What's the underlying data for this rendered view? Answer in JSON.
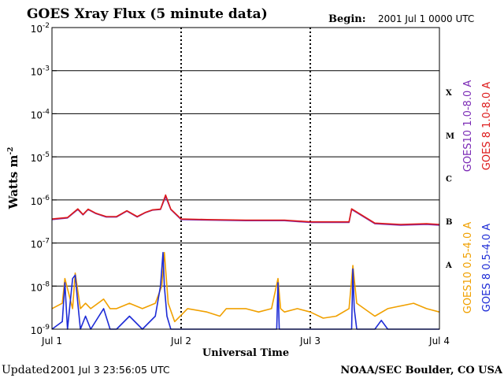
{
  "chart_data": {
    "type": "line",
    "title": "GOES Xray Flux (5 minute data)",
    "begin_label": "Begin:",
    "begin_value": "2001 Jul 1 0000 UTC",
    "ylabel": "Watts m",
    "ylabel_superscript": "-2",
    "xlabel": "Universal Time",
    "y_scale": "log",
    "ylim": [
      1e-09,
      0.01
    ],
    "y_ticks": [
      {
        "base": "10",
        "exp": "-2"
      },
      {
        "base": "10",
        "exp": "-3"
      },
      {
        "base": "10",
        "exp": "-4"
      },
      {
        "base": "10",
        "exp": "-5"
      },
      {
        "base": "10",
        "exp": "-6"
      },
      {
        "base": "10",
        "exp": "-7"
      },
      {
        "base": "10",
        "exp": "-8"
      },
      {
        "base": "10",
        "exp": "-9"
      }
    ],
    "x_ticks": [
      "Jul 1",
      "Jul 2",
      "Jul 3",
      "Jul 4"
    ],
    "xlim_days": [
      0,
      3
    ],
    "flare_classes": [
      {
        "label": "X",
        "level": 0.0001
      },
      {
        "label": "M",
        "level": 1e-05
      },
      {
        "label": "C",
        "level": 1e-06
      },
      {
        "label": "B",
        "level": 1e-07
      },
      {
        "label": "A",
        "level": 1e-08
      }
    ],
    "grid": true,
    "series": [
      {
        "name": "GOES10 1.0-8.0 A",
        "color": "#7b2ab5",
        "x_days": [
          0,
          0.12,
          0.2,
          0.24,
          0.28,
          0.34,
          0.42,
          0.5,
          0.58,
          0.66,
          0.72,
          0.78,
          0.84,
          0.88,
          0.92,
          1.0,
          1.2,
          1.5,
          1.8,
          2.0,
          2.2,
          2.3,
          2.32,
          2.5,
          2.7,
          2.9,
          3.0
        ],
        "values": [
          3.5e-07,
          3.8e-07,
          6e-07,
          4.5e-07,
          6e-07,
          4.8e-07,
          4e-07,
          4e-07,
          5.5e-07,
          4e-07,
          5e-07,
          5.8e-07,
          6e-07,
          1.2e-06,
          6e-07,
          3.5e-07,
          3.4e-07,
          3.3e-07,
          3.3e-07,
          3e-07,
          3e-07,
          3e-07,
          6e-07,
          2.8e-07,
          2.6e-07,
          2.7e-07,
          2.6e-07
        ]
      },
      {
        "name": "GOES 8 1.0-8.0 A",
        "color": "#dd1a1a",
        "x_days": [
          0,
          0.12,
          0.2,
          0.24,
          0.28,
          0.34,
          0.42,
          0.5,
          0.58,
          0.66,
          0.72,
          0.78,
          0.84,
          0.88,
          0.92,
          1.0,
          1.2,
          1.5,
          1.8,
          2.0,
          2.2,
          2.3,
          2.32,
          2.5,
          2.7,
          2.9,
          3.0
        ],
        "values": [
          3.6e-07,
          3.9e-07,
          6.2e-07,
          4.6e-07,
          6.1e-07,
          4.9e-07,
          4.1e-07,
          4.1e-07,
          5.6e-07,
          4.1e-07,
          5.1e-07,
          5.9e-07,
          6.1e-07,
          1.3e-06,
          6.1e-07,
          3.6e-07,
          3.5e-07,
          3.4e-07,
          3.4e-07,
          3.1e-07,
          3.1e-07,
          3.1e-07,
          6.2e-07,
          2.9e-07,
          2.7e-07,
          2.8e-07,
          2.7e-07
        ]
      },
      {
        "name": "GOES10 0.5-4.0 A",
        "color": "#f0a000",
        "x_days": [
          0,
          0.08,
          0.1,
          0.16,
          0.18,
          0.22,
          0.26,
          0.3,
          0.4,
          0.45,
          0.5,
          0.6,
          0.7,
          0.8,
          0.85,
          0.87,
          0.9,
          0.95,
          1.05,
          1.2,
          1.3,
          1.35,
          1.5,
          1.6,
          1.7,
          1.75,
          1.77,
          1.8,
          1.9,
          2.0,
          2.1,
          2.2,
          2.3,
          2.33,
          2.36,
          2.5,
          2.6,
          2.8,
          2.9,
          3.0
        ],
        "values": [
          3e-09,
          4e-09,
          1.5e-08,
          3e-09,
          2e-08,
          3e-09,
          4e-09,
          3e-09,
          5e-09,
          3e-09,
          3e-09,
          4e-09,
          3e-09,
          4e-09,
          1e-08,
          6e-08,
          4e-09,
          1.5e-09,
          3e-09,
          2.5e-09,
          2e-09,
          3e-09,
          3e-09,
          2.5e-09,
          3e-09,
          1.5e-08,
          3e-09,
          2.5e-09,
          3e-09,
          2.5e-09,
          1.8e-09,
          2e-09,
          3e-09,
          3e-08,
          4e-09,
          2e-09,
          3e-09,
          4e-09,
          3e-09,
          2.5e-09
        ]
      },
      {
        "name": "GOES 8 0.5-4.0 A",
        "color": "#1d2bd6",
        "x_days": [
          0,
          0.08,
          0.1,
          0.12,
          0.16,
          0.18,
          0.2,
          0.22,
          0.26,
          0.3,
          0.4,
          0.45,
          0.5,
          0.6,
          0.7,
          0.8,
          0.84,
          0.86,
          0.87,
          0.89,
          0.92,
          0.95,
          1.0,
          1.5,
          1.74,
          1.75,
          1.76,
          2.0,
          2.32,
          2.33,
          2.34,
          2.36,
          2.5,
          2.55,
          2.6,
          3.0
        ],
        "values": [
          1e-09,
          1.5e-09,
          1.2e-08,
          1e-09,
          1.5e-08,
          1.8e-08,
          4e-09,
          1e-09,
          2e-09,
          1e-09,
          3e-09,
          1e-09,
          1e-09,
          2e-09,
          1e-09,
          2e-09,
          1e-08,
          6e-08,
          1e-08,
          2e-09,
          1e-09,
          1e-09,
          1e-09,
          1e-09,
          1e-09,
          1.2e-08,
          1e-09,
          1e-09,
          1e-09,
          2.5e-08,
          3e-09,
          1e-09,
          1e-09,
          1.6e-09,
          1e-09,
          1e-09
        ]
      }
    ]
  },
  "footer": {
    "updated_label": "Updated",
    "updated_value": "2001 Jul  3 23:56:05 UTC",
    "credit": "NOAA/SEC Boulder, CO USA"
  }
}
